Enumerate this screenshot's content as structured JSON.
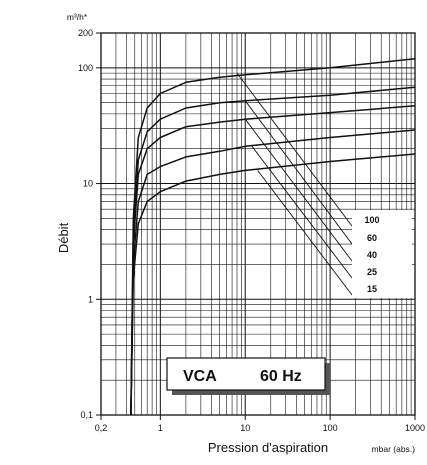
{
  "chart_data": {
    "type": "line",
    "x_scale": "log",
    "y_scale": "log",
    "xlim": [
      0.2,
      1000
    ],
    "ylim": [
      0.1,
      200
    ],
    "xlabel": "Pression d'aspiration",
    "ylabel": "Débit",
    "x_unit": "mbar (abs.)",
    "y_unit": "m³/h*",
    "x_tick_values": [
      0.2,
      1,
      10,
      100,
      1000
    ],
    "x_tick_labels": [
      "0,2",
      "1",
      "10",
      "100",
      "1000"
    ],
    "y_tick_values": [
      0.1,
      1,
      10,
      100,
      200
    ],
    "y_tick_labels": [
      "0,1",
      "1",
      "10",
      "100",
      "200"
    ],
    "grid": true,
    "legend_position": "right",
    "annotation": {
      "model": "VCA",
      "frequency": "60 Hz"
    },
    "series": [
      {
        "name": "100",
        "x": [
          0.45,
          0.48,
          0.55,
          0.7,
          1,
          2,
          5,
          10,
          100,
          1000
        ],
        "y": [
          0.1,
          5,
          25,
          45,
          60,
          75,
          83,
          87,
          100,
          120
        ]
      },
      {
        "name": "60",
        "x": [
          0.45,
          0.48,
          0.55,
          0.7,
          1,
          2,
          5,
          10,
          100,
          1000
        ],
        "y": [
          0.1,
          3.5,
          16,
          28,
          36,
          45,
          50,
          52,
          58,
          68
        ]
      },
      {
        "name": "40",
        "x": [
          0.45,
          0.48,
          0.55,
          0.7,
          1,
          2,
          5,
          10,
          100,
          1000
        ],
        "y": [
          0.1,
          3,
          12,
          20,
          25,
          31,
          34,
          36,
          41,
          47
        ]
      },
      {
        "name": "25",
        "x": [
          0.45,
          0.48,
          0.55,
          0.7,
          1,
          2,
          5,
          10,
          100,
          1000
        ],
        "y": [
          0.1,
          2,
          7,
          12,
          14,
          17,
          19,
          21,
          25,
          29
        ]
      },
      {
        "name": "15",
        "x": [
          0.45,
          0.48,
          0.55,
          0.7,
          1,
          2,
          5,
          10,
          100,
          1000
        ],
        "y": [
          0.1,
          1.5,
          4.5,
          7,
          8.5,
          10.5,
          12,
          13,
          15.5,
          18
        ]
      }
    ]
  }
}
